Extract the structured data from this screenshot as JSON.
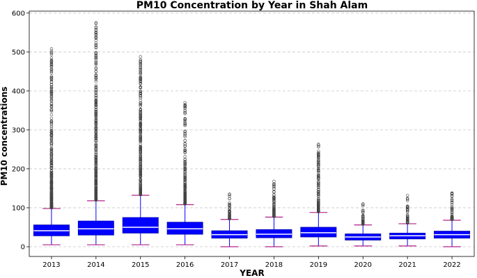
{
  "chart_data": {
    "type": "box",
    "title": "PM10 Concentration by Year in Shah Alam",
    "xlabel": "YEAR",
    "ylabel": "PM10 concentrations",
    "ylim": [
      -25,
      605
    ],
    "yticks": [
      0,
      100,
      200,
      300,
      400,
      500,
      600
    ],
    "grid": "horizontal dashed",
    "colors": {
      "box_fill": "#0000ff",
      "median": "#ffffff",
      "whisker": "#0000ff",
      "cap": "#b0208b",
      "flier_edge": "#444444"
    },
    "categories": [
      "2013",
      "2014",
      "2015",
      "2016",
      "2017",
      "2018",
      "2019",
      "2020",
      "2021",
      "2022"
    ],
    "boxes": [
      {
        "year": "2013",
        "whislo": 5,
        "q1": 28,
        "med": 41,
        "q3": 56,
        "whishi": 98,
        "fliers_max": 508,
        "outlier_range": [
          100,
          508
        ]
      },
      {
        "year": "2014",
        "whislo": 5,
        "q1": 30,
        "med": 46,
        "q3": 66,
        "whishi": 118,
        "fliers_max": 575,
        "outlier_range": [
          120,
          575
        ]
      },
      {
        "year": "2015",
        "whislo": 5,
        "q1": 35,
        "med": 50,
        "q3": 75,
        "whishi": 132,
        "fliers_max": 488,
        "outlier_range": [
          134,
          488
        ]
      },
      {
        "year": "2016",
        "whislo": 5,
        "q1": 32,
        "med": 46,
        "q3": 63,
        "whishi": 108,
        "fliers_max": 370,
        "outlier_range": [
          110,
          370
        ]
      },
      {
        "year": "2017",
        "whislo": 0,
        "q1": 22,
        "med": 31,
        "q3": 41,
        "whishi": 70,
        "fliers_max": 135,
        "outlier_range": [
          72,
          135
        ]
      },
      {
        "year": "2018",
        "whislo": 0,
        "q1": 23,
        "med": 32,
        "q3": 44,
        "whishi": 76,
        "fliers_max": 168,
        "outlier_range": [
          78,
          168
        ]
      },
      {
        "year": "2019",
        "whislo": 2,
        "q1": 25,
        "med": 36,
        "q3": 50,
        "whishi": 88,
        "fliers_max": 263,
        "outlier_range": [
          90,
          263
        ]
      },
      {
        "year": "2020",
        "whislo": 2,
        "q1": 17,
        "med": 25,
        "q3": 33,
        "whishi": 56,
        "fliers_max": 110,
        "outlier_range": [
          58,
          110
        ]
      },
      {
        "year": "2021",
        "whislo": 2,
        "q1": 20,
        "med": 28,
        "q3": 35,
        "whishi": 59,
        "fliers_max": 132,
        "outlier_range": [
          61,
          132
        ]
      },
      {
        "year": "2022",
        "whislo": 0,
        "q1": 22,
        "med": 31,
        "q3": 40,
        "whishi": 68,
        "fliers_max": 138,
        "outlier_range": [
          70,
          138
        ]
      }
    ]
  }
}
